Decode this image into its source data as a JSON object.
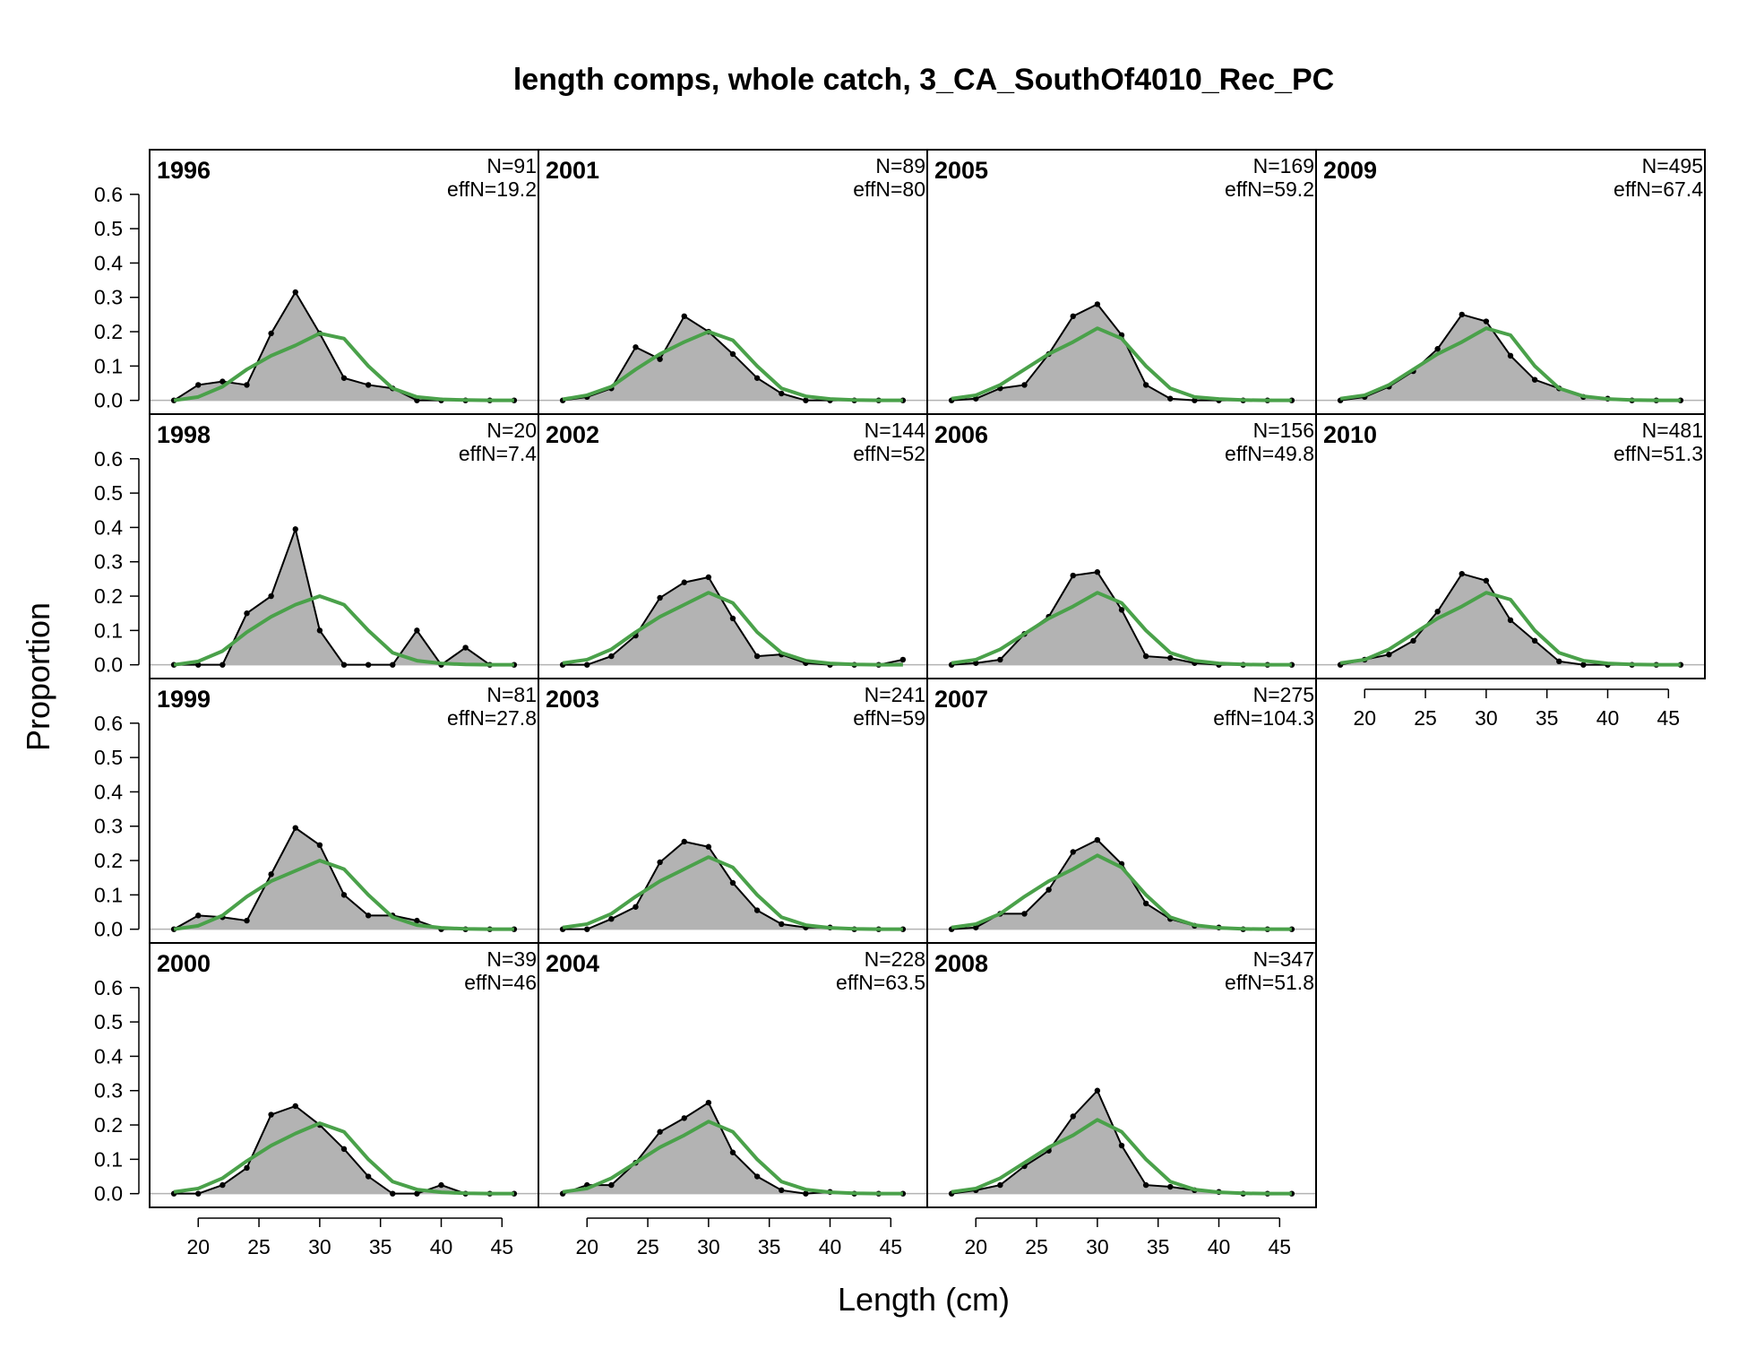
{
  "chart_data": {
    "type": "area",
    "title": "length comps, whole catch, 3_CA_SouthOf4010_Rec_PC",
    "xlabel": "Length (cm)",
    "ylabel": "Proportion",
    "xlim": [
      16,
      48
    ],
    "ylim": [
      -0.04,
      0.73
    ],
    "x_ticks": [
      20,
      25,
      30,
      35,
      40,
      45
    ],
    "y_ticks": [
      0.0,
      0.1,
      0.2,
      0.3,
      0.4,
      0.5,
      0.6
    ],
    "x": [
      18,
      20,
      22,
      24,
      26,
      28,
      30,
      32,
      34,
      36,
      38,
      40,
      42,
      44,
      46
    ],
    "colors": {
      "observed_fill": "#b3b3b3",
      "observed_line": "#000000",
      "expected_line": "#4aa14a",
      "zero_line": "#b3b3b3"
    },
    "panels": [
      {
        "year": "1996",
        "n_label": "N=91",
        "effn_label": "effN=19.2",
        "observed": [
          0,
          0.045,
          0.055,
          0.045,
          0.195,
          0.315,
          0.195,
          0.065,
          0.045,
          0.035,
          0,
          0,
          0,
          0,
          0
        ],
        "expected": [
          0,
          0.01,
          0.04,
          0.09,
          0.13,
          0.16,
          0.195,
          0.18,
          0.1,
          0.035,
          0.01,
          0.003,
          0.001,
          0,
          0
        ]
      },
      {
        "year": "2001",
        "n_label": "N=89",
        "effn_label": "effN=80",
        "observed": [
          0,
          0.01,
          0.035,
          0.155,
          0.12,
          0.245,
          0.2,
          0.135,
          0.065,
          0.02,
          0,
          0,
          0,
          0,
          0
        ],
        "expected": [
          0.003,
          0.015,
          0.04,
          0.09,
          0.135,
          0.17,
          0.2,
          0.175,
          0.1,
          0.035,
          0.012,
          0.004,
          0.001,
          0,
          0
        ]
      },
      {
        "year": "2005",
        "n_label": "N=169",
        "effn_label": "effN=59.2",
        "observed": [
          0,
          0.005,
          0.035,
          0.045,
          0.135,
          0.245,
          0.28,
          0.19,
          0.045,
          0.005,
          0,
          0,
          0,
          0,
          0
        ],
        "expected": [
          0.005,
          0.015,
          0.045,
          0.09,
          0.135,
          0.17,
          0.21,
          0.18,
          0.1,
          0.035,
          0.01,
          0.004,
          0.001,
          0,
          0
        ]
      },
      {
        "year": "2009",
        "n_label": "N=495",
        "effn_label": "effN=67.4",
        "observed": [
          0,
          0.01,
          0.04,
          0.085,
          0.15,
          0.25,
          0.23,
          0.13,
          0.06,
          0.035,
          0.01,
          0.005,
          0,
          0,
          0
        ],
        "expected": [
          0.005,
          0.015,
          0.045,
          0.09,
          0.135,
          0.17,
          0.21,
          0.19,
          0.1,
          0.035,
          0.012,
          0.004,
          0.001,
          0,
          0
        ]
      },
      {
        "year": "1998",
        "n_label": "N=20",
        "effn_label": "effN=7.4",
        "observed": [
          0,
          0,
          0,
          0.15,
          0.2,
          0.395,
          0.1,
          0,
          0,
          0,
          0.1,
          0,
          0.05,
          0,
          0
        ],
        "expected": [
          0,
          0.01,
          0.04,
          0.095,
          0.14,
          0.175,
          0.2,
          0.175,
          0.1,
          0.035,
          0.012,
          0.004,
          0.001,
          0,
          0
        ]
      },
      {
        "year": "2002",
        "n_label": "N=144",
        "effn_label": "effN=52",
        "observed": [
          0,
          0,
          0.025,
          0.085,
          0.195,
          0.24,
          0.255,
          0.135,
          0.025,
          0.03,
          0.005,
          0,
          0,
          0,
          0.015
        ],
        "expected": [
          0.005,
          0.015,
          0.045,
          0.095,
          0.14,
          0.175,
          0.21,
          0.18,
          0.095,
          0.035,
          0.012,
          0.004,
          0.001,
          0,
          0
        ]
      },
      {
        "year": "2006",
        "n_label": "N=156",
        "effn_label": "effN=49.8",
        "observed": [
          0,
          0.005,
          0.015,
          0.09,
          0.14,
          0.26,
          0.27,
          0.16,
          0.025,
          0.02,
          0.005,
          0,
          0,
          0,
          0
        ],
        "expected": [
          0.005,
          0.015,
          0.045,
          0.09,
          0.135,
          0.17,
          0.21,
          0.18,
          0.1,
          0.035,
          0.012,
          0.004,
          0.001,
          0,
          0
        ]
      },
      {
        "year": "2010",
        "n_label": "N=481",
        "effn_label": "effN=51.3",
        "observed": [
          0,
          0.015,
          0.03,
          0.07,
          0.155,
          0.265,
          0.245,
          0.13,
          0.07,
          0.01,
          0,
          0,
          0,
          0,
          0
        ],
        "expected": [
          0.005,
          0.015,
          0.045,
          0.09,
          0.135,
          0.17,
          0.21,
          0.19,
          0.1,
          0.035,
          0.012,
          0.004,
          0.001,
          0,
          0
        ]
      },
      {
        "year": "1999",
        "n_label": "N=81",
        "effn_label": "effN=27.8",
        "observed": [
          0,
          0.04,
          0.035,
          0.025,
          0.16,
          0.295,
          0.245,
          0.1,
          0.04,
          0.04,
          0.025,
          0,
          0,
          0,
          0
        ],
        "expected": [
          0,
          0.01,
          0.04,
          0.095,
          0.14,
          0.17,
          0.2,
          0.175,
          0.1,
          0.035,
          0.012,
          0.004,
          0.001,
          0,
          0
        ]
      },
      {
        "year": "2003",
        "n_label": "N=241",
        "effn_label": "effN=59",
        "observed": [
          0,
          0,
          0.03,
          0.065,
          0.195,
          0.255,
          0.24,
          0.135,
          0.055,
          0.015,
          0.005,
          0.005,
          0,
          0,
          0
        ],
        "expected": [
          0.005,
          0.015,
          0.045,
          0.095,
          0.14,
          0.175,
          0.21,
          0.18,
          0.1,
          0.035,
          0.012,
          0.004,
          0.001,
          0,
          0
        ]
      },
      {
        "year": "2007",
        "n_label": "N=275",
        "effn_label": "effN=104.3",
        "observed": [
          0,
          0.005,
          0.045,
          0.045,
          0.115,
          0.225,
          0.26,
          0.19,
          0.075,
          0.03,
          0.01,
          0.005,
          0,
          0,
          0
        ],
        "expected": [
          0.005,
          0.015,
          0.045,
          0.095,
          0.14,
          0.175,
          0.215,
          0.18,
          0.1,
          0.035,
          0.012,
          0.004,
          0.001,
          0,
          0
        ]
      },
      {
        "year": "2000",
        "n_label": "N=39",
        "effn_label": "effN=46",
        "observed": [
          0,
          0,
          0.025,
          0.075,
          0.23,
          0.255,
          0.2,
          0.13,
          0.05,
          0,
          0,
          0.025,
          0,
          0,
          0
        ],
        "expected": [
          0.005,
          0.015,
          0.045,
          0.095,
          0.14,
          0.175,
          0.205,
          0.18,
          0.1,
          0.035,
          0.012,
          0.004,
          0.001,
          0,
          0
        ]
      },
      {
        "year": "2004",
        "n_label": "N=228",
        "effn_label": "effN=63.5",
        "observed": [
          0,
          0.025,
          0.025,
          0.09,
          0.18,
          0.22,
          0.265,
          0.12,
          0.05,
          0.01,
          0,
          0.005,
          0,
          0,
          0
        ],
        "expected": [
          0.005,
          0.015,
          0.045,
          0.09,
          0.135,
          0.17,
          0.21,
          0.18,
          0.1,
          0.035,
          0.012,
          0.004,
          0.001,
          0,
          0
        ]
      },
      {
        "year": "2008",
        "n_label": "N=347",
        "effn_label": "effN=51.8",
        "observed": [
          0,
          0.01,
          0.025,
          0.08,
          0.125,
          0.225,
          0.3,
          0.14,
          0.025,
          0.02,
          0.01,
          0.005,
          0,
          0,
          0
        ],
        "expected": [
          0.005,
          0.015,
          0.045,
          0.09,
          0.135,
          0.17,
          0.215,
          0.18,
          0.1,
          0.035,
          0.012,
          0.004,
          0.001,
          0,
          0
        ]
      }
    ]
  }
}
